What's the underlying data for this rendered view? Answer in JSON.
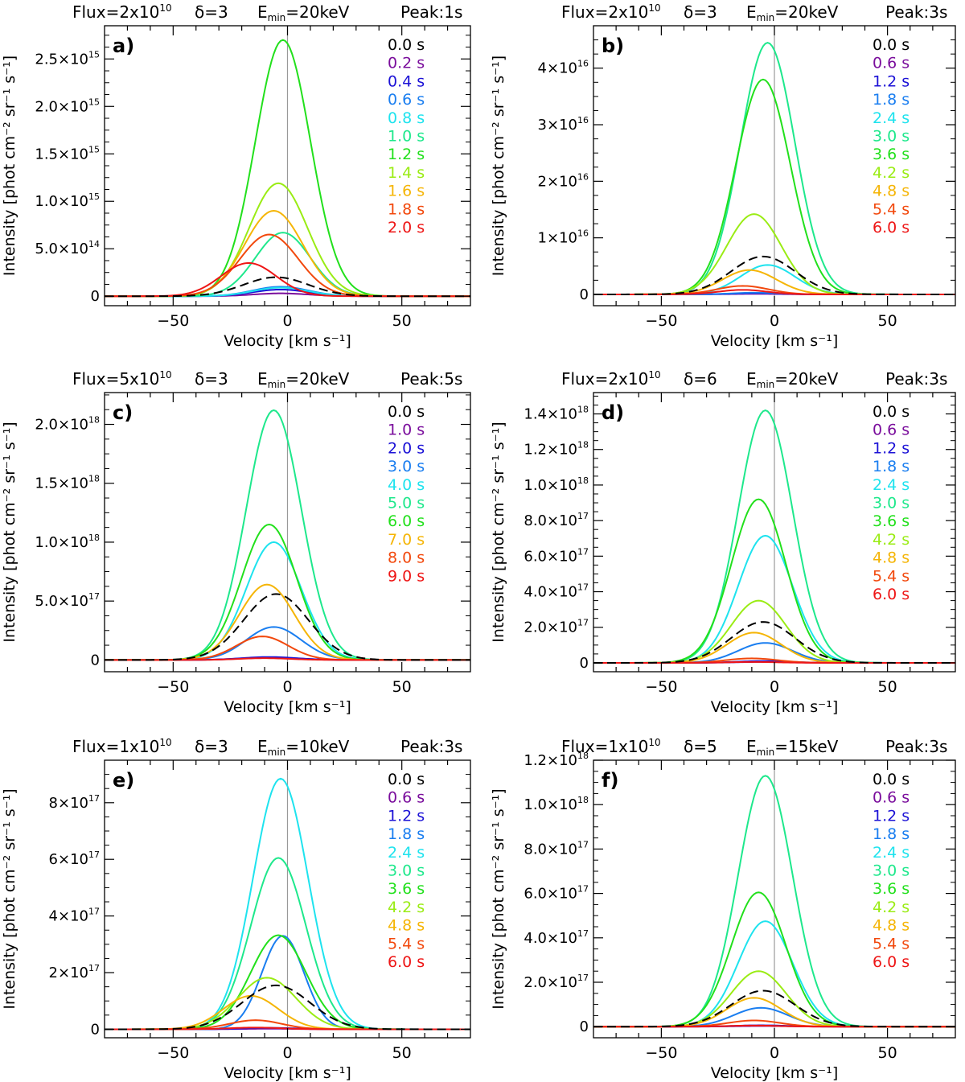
{
  "figure": {
    "xlabel": "Velocity [km s⁻¹]",
    "ylabel": "Intensity [phot cm⁻² sr⁻¹ s⁻¹]"
  },
  "colors": {
    "c0": "#000000",
    "c1": "#7a0d9c",
    "c2": "#1c12d6",
    "c3": "#1a7ef0",
    "c4": "#1ee3ee",
    "c5": "#1ee88c",
    "c6": "#22e01c",
    "c7": "#9aec14",
    "c8": "#f5b506",
    "c9": "#f2480c",
    "c10": "#ee1616"
  },
  "chart_data": [
    {
      "type": "line",
      "letter": "a)",
      "title": {
        "flux": "Flux=2x10",
        "flux_exp": "10",
        "delta": "δ=3",
        "emin": "E",
        "emin_sub": "min",
        "emin_val": "=20keV",
        "peak": "Peak:1s"
      },
      "xlim": [
        -80,
        80
      ],
      "ylim": [
        -100000000000000.0,
        2850000000000000.0
      ],
      "yticks": [
        {
          "value": 0,
          "mant": "0",
          "exp": ""
        },
        {
          "value": 500000000000000.0,
          "mant": "5.0×10",
          "exp": "14"
        },
        {
          "value": 1000000000000000.0,
          "mant": "1.0×10",
          "exp": "15"
        },
        {
          "value": 1500000000000000.0,
          "mant": "1.5×10",
          "exp": "15"
        },
        {
          "value": 2000000000000000.0,
          "mant": "2.0×10",
          "exp": "15"
        },
        {
          "value": 2500000000000000.0,
          "mant": "2.5×10",
          "exp": "15"
        }
      ],
      "xticks": [
        {
          "value": -50,
          "label": "−50"
        },
        {
          "value": 0,
          "label": "0"
        },
        {
          "value": 50,
          "label": "50"
        }
      ],
      "legend": [
        "0.0 s",
        "0.2 s",
        "0.4 s",
        "0.6 s",
        "0.8 s",
        "1.0 s",
        "1.2 s",
        "1.4 s",
        "1.6 s",
        "1.8 s",
        "2.0 s"
      ],
      "series": [
        {
          "name": "0.0 s",
          "color": "c0",
          "dashed": true,
          "peak": 200000000000000.0,
          "center": -5,
          "width": 20
        },
        {
          "name": "0.2 s",
          "color": "c1",
          "peak": 30000000000000.0,
          "center": -3,
          "width": 17
        },
        {
          "name": "0.4 s",
          "color": "c2",
          "peak": 70000000000000.0,
          "center": -3,
          "width": 17
        },
        {
          "name": "0.6 s",
          "color": "c3",
          "peak": 100000000000000.0,
          "center": -3,
          "width": 17
        },
        {
          "name": "0.8 s",
          "color": "c4",
          "peak": 90000000000000.0,
          "center": -3,
          "width": 17
        },
        {
          "name": "1.0 s",
          "color": "c5",
          "peak": 670000000000000.0,
          "center": -2,
          "width": 17
        },
        {
          "name": "1.2 s",
          "color": "c6",
          "peak": 2700000000000000.0,
          "center": -2,
          "width": 17
        },
        {
          "name": "1.4 s",
          "color": "c7",
          "peak": 1190000000000000.0,
          "center": -4,
          "width": 18
        },
        {
          "name": "1.6 s",
          "color": "c8",
          "peak": 900000000000000.0,
          "center": -6,
          "width": 18
        },
        {
          "name": "1.8 s",
          "color": "c9",
          "peak": 650000000000000.0,
          "center": -8,
          "width": 18
        },
        {
          "name": "2.0 s",
          "color": "c10",
          "peak": 350000000000000.0,
          "center": -17,
          "width": 17
        }
      ]
    },
    {
      "type": "line",
      "letter": "b)",
      "title": {
        "flux": "Flux=2x10",
        "flux_exp": "10",
        "delta": "δ=3",
        "emin": "E",
        "emin_sub": "min",
        "emin_val": "=20keV",
        "peak": "Peak:3s"
      },
      "xlim": [
        -80,
        80
      ],
      "ylim": [
        -2000000000000000.0,
        4.75e+16
      ],
      "yticks": [
        {
          "value": 0,
          "mant": "0",
          "exp": ""
        },
        {
          "value": 1e+16,
          "mant": "1×10",
          "exp": "16"
        },
        {
          "value": 2e+16,
          "mant": "2×10",
          "exp": "16"
        },
        {
          "value": 3e+16,
          "mant": "3×10",
          "exp": "16"
        },
        {
          "value": 4e+16,
          "mant": "4×10",
          "exp": "16"
        }
      ],
      "xticks": [
        {
          "value": -50,
          "label": "−50"
        },
        {
          "value": 0,
          "label": "0"
        },
        {
          "value": 50,
          "label": "50"
        }
      ],
      "legend": [
        "0.0 s",
        "0.6 s",
        "1.2 s",
        "1.8 s",
        "2.4 s",
        "3.0 s",
        "3.6 s",
        "4.2 s",
        "4.8 s",
        "5.4 s",
        "6.0 s"
      ],
      "series": [
        {
          "name": "0.0 s",
          "color": "c0",
          "dashed": true,
          "peak": 6700000000000000.0,
          "center": -5,
          "width": 20
        },
        {
          "name": "0.6 s",
          "color": "c1",
          "peak": 100000000000000.0,
          "center": -8,
          "width": 15
        },
        {
          "name": "1.2 s",
          "color": "c2",
          "peak": 200000000000000.0,
          "center": -8,
          "width": 15
        },
        {
          "name": "1.8 s",
          "color": "c3",
          "peak": 300000000000000.0,
          "center": -8,
          "width": 15
        },
        {
          "name": "2.4 s",
          "color": "c4",
          "peak": 5200000000000000.0,
          "center": -3,
          "width": 17
        },
        {
          "name": "3.0 s",
          "color": "c5",
          "peak": 4.45e+16,
          "center": -3,
          "width": 17
        },
        {
          "name": "3.6 s",
          "color": "c6",
          "peak": 3.8e+16,
          "center": -5,
          "width": 17
        },
        {
          "name": "4.2 s",
          "color": "c7",
          "peak": 1.42e+16,
          "center": -9,
          "width": 17
        },
        {
          "name": "4.8 s",
          "color": "c8",
          "peak": 4300000000000000.0,
          "center": -11,
          "width": 17
        },
        {
          "name": "5.4 s",
          "color": "c9",
          "peak": 1500000000000000.0,
          "center": -14,
          "width": 16
        },
        {
          "name": "6.0 s",
          "color": "c10",
          "peak": 800000000000000.0,
          "center": -14,
          "width": 15
        }
      ]
    },
    {
      "type": "line",
      "letter": "c)",
      "title": {
        "flux": "Flux=5x10",
        "flux_exp": "10",
        "delta": "δ=3",
        "emin": "E",
        "emin_sub": "min",
        "emin_val": "=20keV",
        "peak": "Peak:5s"
      },
      "xlim": [
        -80,
        80
      ],
      "ylim": [
        -1e+17,
        2.27e+18
      ],
      "yticks": [
        {
          "value": 0,
          "mant": "0",
          "exp": ""
        },
        {
          "value": 5e+17,
          "mant": "5.0×10",
          "exp": "17"
        },
        {
          "value": 1e+18,
          "mant": "1.0×10",
          "exp": "18"
        },
        {
          "value": 1.5e+18,
          "mant": "1.5×10",
          "exp": "18"
        },
        {
          "value": 2e+18,
          "mant": "2.0×10",
          "exp": "18"
        }
      ],
      "xticks": [
        {
          "value": -50,
          "label": "−50"
        },
        {
          "value": 0,
          "label": "0"
        },
        {
          "value": 50,
          "label": "50"
        }
      ],
      "legend": [
        "0.0 s",
        "1.0 s",
        "2.0 s",
        "3.0 s",
        "4.0 s",
        "5.0 s",
        "6.0 s",
        "7.0 s",
        "8.0 s",
        "9.0 s"
      ],
      "series": [
        {
          "name": "0.0 s",
          "color": "c0",
          "dashed": true,
          "peak": 5.6e+17,
          "center": -5,
          "width": 20
        },
        {
          "name": "1.0 s",
          "color": "c1",
          "peak": 2e+16,
          "center": -8,
          "width": 17
        },
        {
          "name": "2.0 s",
          "color": "c2",
          "peak": 2.5e+16,
          "center": -8,
          "width": 17
        },
        {
          "name": "3.0 s",
          "color": "c3",
          "peak": 2.8e+17,
          "center": -6,
          "width": 17
        },
        {
          "name": "4.0 s",
          "color": "c4",
          "peak": 1e+18,
          "center": -6,
          "width": 17
        },
        {
          "name": "5.0 s",
          "color": "c5",
          "peak": 2.12e+18,
          "center": -6,
          "width": 17
        },
        {
          "name": "6.0 s",
          "color": "c6",
          "peak": 1.15e+18,
          "center": -8,
          "width": 17
        },
        {
          "name": "7.0 s",
          "color": "c8",
          "peak": 6.4e+17,
          "center": -9,
          "width": 17
        },
        {
          "name": "8.0 s",
          "color": "c9",
          "peak": 2e+17,
          "center": -11,
          "width": 16
        },
        {
          "name": "9.0 s",
          "color": "c10",
          "peak": 1.5e+16,
          "center": -10,
          "width": 16
        }
      ]
    },
    {
      "type": "line",
      "letter": "d)",
      "title": {
        "flux": "Flux=2x10",
        "flux_exp": "10",
        "delta": "δ=6",
        "emin": "E",
        "emin_sub": "min",
        "emin_val": "=20keV",
        "peak": "Peak:3s"
      },
      "xlim": [
        -80,
        80
      ],
      "ylim": [
        -5e+16,
        1.52e+18
      ],
      "yticks": [
        {
          "value": 0,
          "mant": "0",
          "exp": ""
        },
        {
          "value": 2e+17,
          "mant": "2.0×10",
          "exp": "17"
        },
        {
          "value": 4e+17,
          "mant": "4.0×10",
          "exp": "17"
        },
        {
          "value": 6e+17,
          "mant": "6.0×10",
          "exp": "17"
        },
        {
          "value": 8e+17,
          "mant": "8.0×10",
          "exp": "17"
        },
        {
          "value": 1e+18,
          "mant": "1.0×10",
          "exp": "18"
        },
        {
          "value": 1.2e+18,
          "mant": "1.2×10",
          "exp": "18"
        },
        {
          "value": 1.4e+18,
          "mant": "1.4×10",
          "exp": "18"
        }
      ],
      "xticks": [
        {
          "value": -50,
          "label": "−50"
        },
        {
          "value": 0,
          "label": "0"
        },
        {
          "value": 50,
          "label": "50"
        }
      ],
      "legend": [
        "0.0 s",
        "0.6 s",
        "1.2 s",
        "1.8 s",
        "2.4 s",
        "3.0 s",
        "3.6 s",
        "4.2 s",
        "4.8 s",
        "5.4 s",
        "6.0 s"
      ],
      "series": [
        {
          "name": "0.0 s",
          "color": "c0",
          "dashed": true,
          "peak": 2.3e+17,
          "center": -5,
          "width": 20
        },
        {
          "name": "0.6 s",
          "color": "c1",
          "peak": 5000000000000000.0,
          "center": -5,
          "width": 17
        },
        {
          "name": "1.2 s",
          "color": "c2",
          "peak": 1e+16,
          "center": -5,
          "width": 17
        },
        {
          "name": "1.8 s",
          "color": "c3",
          "peak": 1.12e+17,
          "center": -4,
          "width": 17
        },
        {
          "name": "2.4 s",
          "color": "c4",
          "peak": 7.15e+17,
          "center": -4,
          "width": 17
        },
        {
          "name": "3.0 s",
          "color": "c5",
          "peak": 1.42e+18,
          "center": -4,
          "width": 17
        },
        {
          "name": "3.6 s",
          "color": "c6",
          "peak": 9.2e+17,
          "center": -7,
          "width": 17
        },
        {
          "name": "4.2 s",
          "color": "c7",
          "peak": 3.5e+17,
          "center": -7,
          "width": 17
        },
        {
          "name": "4.8 s",
          "color": "c8",
          "peak": 1.7e+17,
          "center": -9,
          "width": 17
        },
        {
          "name": "5.4 s",
          "color": "c9",
          "peak": 2.5e+16,
          "center": -10,
          "width": 16
        },
        {
          "name": "6.0 s",
          "color": "c10",
          "peak": 5000000000000000.0,
          "center": -10,
          "width": 16
        }
      ]
    },
    {
      "type": "line",
      "letter": "e)",
      "title": {
        "flux": "Flux=1x10",
        "flux_exp": "10",
        "delta": "δ=3",
        "emin": "E",
        "emin_sub": "min",
        "emin_val": "=10keV",
        "peak": "Peak:3s"
      },
      "xlim": [
        -80,
        80
      ],
      "ylim": [
        -3e+16,
        9.5e+17
      ],
      "yticks": [
        {
          "value": 0,
          "mant": "0",
          "exp": ""
        },
        {
          "value": 2e+17,
          "mant": "2×10",
          "exp": "17"
        },
        {
          "value": 4e+17,
          "mant": "4×10",
          "exp": "17"
        },
        {
          "value": 6e+17,
          "mant": "6×10",
          "exp": "17"
        },
        {
          "value": 8e+17,
          "mant": "8×10",
          "exp": "17"
        }
      ],
      "xticks": [
        {
          "value": -50,
          "label": "−50"
        },
        {
          "value": 0,
          "label": "0"
        },
        {
          "value": 50,
          "label": "50"
        }
      ],
      "legend": [
        "0.0 s",
        "0.6 s",
        "1.2 s",
        "1.8 s",
        "2.4 s",
        "3.0 s",
        "3.6 s",
        "4.2 s",
        "4.8 s",
        "5.4 s",
        "6.0 s"
      ],
      "series": [
        {
          "name": "0.0 s",
          "color": "c0",
          "dashed": true,
          "peak": 1.55e+17,
          "center": -5,
          "width": 21
        },
        {
          "name": "0.6 s",
          "color": "c1",
          "peak": 2000000000000000.0,
          "center": -8,
          "width": 17
        },
        {
          "name": "1.2 s",
          "color": "c2",
          "peak": 5000000000000000.0,
          "center": -8,
          "width": 17
        },
        {
          "name": "1.8 s",
          "color": "c3",
          "peak": 3.3e+17,
          "center": -2,
          "width": 13
        },
        {
          "name": "2.4 s",
          "color": "c4",
          "peak": 8.85e+17,
          "center": -3,
          "width": 17
        },
        {
          "name": "3.0 s",
          "color": "c5",
          "peak": 6.05e+17,
          "center": -4,
          "width": 17
        },
        {
          "name": "3.6 s",
          "color": "c6",
          "peak": 3.32e+17,
          "center": -4,
          "width": 17
        },
        {
          "name": "4.2 s",
          "color": "c7",
          "peak": 1.82e+17,
          "center": -9,
          "width": 18
        },
        {
          "name": "4.8 s",
          "color": "c8",
          "peak": 1.18e+17,
          "center": -16,
          "width": 17
        },
        {
          "name": "5.4 s",
          "color": "c9",
          "peak": 3.2e+16,
          "center": -14,
          "width": 16
        },
        {
          "name": "6.0 s",
          "color": "c10",
          "peak": 6000000000000000.0,
          "center": -14,
          "width": 16
        }
      ]
    },
    {
      "type": "line",
      "letter": "f)",
      "title": {
        "flux": "Flux=1x10",
        "flux_exp": "10",
        "delta": "δ=5",
        "emin": "E",
        "emin_sub": "min",
        "emin_val": "=15keV",
        "peak": "Peak:3s"
      },
      "xlim": [
        -80,
        80
      ],
      "ylim": [
        -5e+16,
        1.2e+18
      ],
      "yticks": [
        {
          "value": 0,
          "mant": "0",
          "exp": ""
        },
        {
          "value": 2e+17,
          "mant": "2.0×10",
          "exp": "17"
        },
        {
          "value": 4e+17,
          "mant": "4.0×10",
          "exp": "17"
        },
        {
          "value": 6e+17,
          "mant": "6.0×10",
          "exp": "17"
        },
        {
          "value": 8e+17,
          "mant": "8.0×10",
          "exp": "17"
        },
        {
          "value": 1e+18,
          "mant": "1.0×10",
          "exp": "18"
        },
        {
          "value": 1.2e+18,
          "mant": "1.2×10",
          "exp": "18"
        }
      ],
      "xticks": [
        {
          "value": -50,
          "label": "−50"
        },
        {
          "value": 0,
          "label": "0"
        },
        {
          "value": 50,
          "label": "50"
        }
      ],
      "legend": [
        "0.0 s",
        "0.6 s",
        "1.2 s",
        "1.8 s",
        "2.4 s",
        "3.0 s",
        "3.6 s",
        "4.2 s",
        "4.8 s",
        "5.4 s",
        "6.0 s"
      ],
      "series": [
        {
          "name": "0.0 s",
          "color": "c0",
          "dashed": true,
          "peak": 1.62e+17,
          "center": -5,
          "width": 20
        },
        {
          "name": "0.6 s",
          "color": "c1",
          "peak": 3000000000000000.0,
          "center": -6,
          "width": 17
        },
        {
          "name": "1.2 s",
          "color": "c2",
          "peak": 6000000000000000.0,
          "center": -6,
          "width": 17
        },
        {
          "name": "1.8 s",
          "color": "c3",
          "peak": 8.5e+16,
          "center": -6,
          "width": 17
        },
        {
          "name": "2.4 s",
          "color": "c4",
          "peak": 4.75e+17,
          "center": -4,
          "width": 17
        },
        {
          "name": "3.0 s",
          "color": "c5",
          "peak": 1.13e+18,
          "center": -4,
          "width": 17
        },
        {
          "name": "3.6 s",
          "color": "c6",
          "peak": 6.05e+17,
          "center": -7,
          "width": 17
        },
        {
          "name": "4.2 s",
          "color": "c7",
          "peak": 2.5e+17,
          "center": -7,
          "width": 17
        },
        {
          "name": "4.8 s",
          "color": "c8",
          "peak": 1.3e+17,
          "center": -9,
          "width": 17
        },
        {
          "name": "5.4 s",
          "color": "c9",
          "peak": 2.8e+16,
          "center": -9,
          "width": 16
        },
        {
          "name": "6.0 s",
          "color": "c10",
          "peak": 5000000000000000.0,
          "center": -9,
          "width": 16
        }
      ]
    }
  ]
}
